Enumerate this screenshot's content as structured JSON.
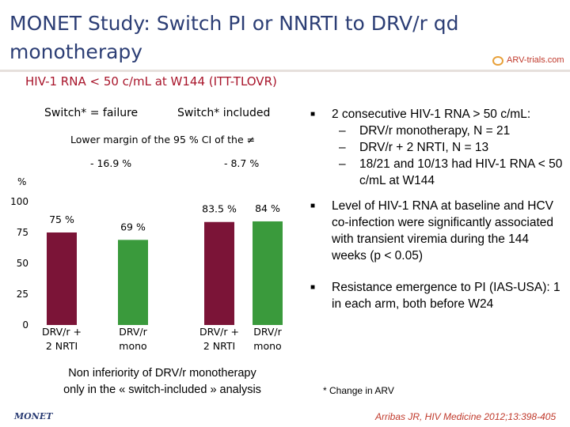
{
  "title": "MONET Study: Switch PI or NNRTI to DRV/r qd monotherapy",
  "logo_text": "ARV-trials.com",
  "subtitle": "HIV-1 RNA < 50 c/mL at W144 (ITT-TLOVR)",
  "colors": {
    "title": "#2c3e75",
    "accent": "#a8142a",
    "drv_nrti": "#7b1437",
    "drv_mono": "#3a9a3c"
  },
  "chart_data": {
    "type": "bar",
    "ylabel": "%",
    "ylim": [
      0,
      100
    ],
    "yticks": [
      0,
      25,
      50,
      75,
      100
    ],
    "groups": [
      {
        "name": "Switch* = failure",
        "margin_label": "- 16.9 %"
      },
      {
        "name": "Switch* included",
        "margin_label": "- 8.7 %"
      }
    ],
    "margin_heading": "Lower margin of the 95 % CI of the ≠",
    "bars": [
      {
        "group": "Switch* = failure",
        "category": "DRV/r + 2 NRTI",
        "value": 75,
        "label": "75 %"
      },
      {
        "group": "Switch* = failure",
        "category": "DRV/r mono",
        "value": 69,
        "label": "69 %"
      },
      {
        "group": "Switch* included",
        "category": "DRV/r + 2 NRTI",
        "value": 83.5,
        "label": "83.5 %"
      },
      {
        "group": "Switch* included",
        "category": "DRV/r mono",
        "value": 84,
        "label": "84 %"
      }
    ],
    "category_lines": [
      [
        "DRV/r +",
        "2 NRTI"
      ],
      [
        "DRV/r",
        "mono"
      ],
      [
        "DRV/r +",
        "2 NRTI"
      ],
      [
        "DRV/r",
        "mono"
      ]
    ]
  },
  "noninferiority_line1": "Non inferiority of DRV/r monotherapy",
  "noninferiority_line2": "only in the « switch-included » analysis",
  "bullets": {
    "b1": "2 consecutive HIV-1 RNA > 50 c/mL:",
    "b1_sub": [
      "DRV/r monotherapy, N = 21",
      "DRV/r + 2 NRTI, N = 13",
      "18/21 and 10/13 had HIV-1 RNA < 50 c/mL at W144"
    ],
    "b2": "Level of HIV-1 RNA at baseline and HCV co-infection were significantly associated with transient viremia during the 144 weeks (p < 0.05)",
    "b3": "Resistance emergence to PI (IAS-USA): 1 in each arm, both before W24"
  },
  "footnote": "* Change in ARV",
  "study_mark": "MONET",
  "citation": "Arribas JR, HIV Medicine 2012;13:398-405"
}
